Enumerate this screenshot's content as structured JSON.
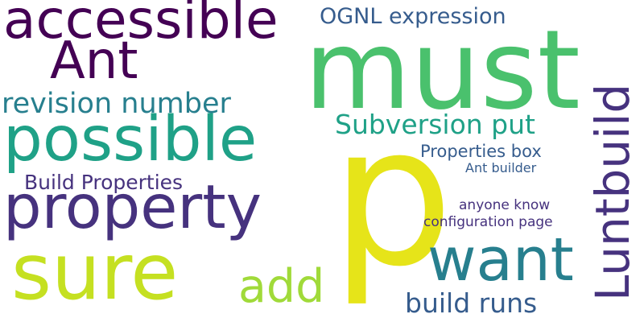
{
  "colors": {
    "background": "#ffffff",
    "dark_purple": "#440154",
    "indigo": "#46327e",
    "slate_blue": "#365c8d",
    "teal_blue": "#277f8e",
    "teal": "#1fa187",
    "green": "#4ac16d",
    "yellow_green": "#a0da39",
    "lime": "#c5e021",
    "yellow": "#e6e419"
  },
  "words": [
    {
      "key": "must",
      "text": "must",
      "color": "#4ac16d"
    },
    {
      "key": "p",
      "text": "p",
      "color": "#e6e419"
    },
    {
      "key": "accessible",
      "text": "accessible",
      "color": "#440154"
    },
    {
      "key": "Ant",
      "text": "Ant",
      "color": "#440154"
    },
    {
      "key": "possible",
      "text": "possible",
      "color": "#1fa187"
    },
    {
      "key": "property",
      "text": "property",
      "color": "#46327e"
    },
    {
      "key": "sure",
      "text": "sure",
      "color": "#c5e021"
    },
    {
      "key": "want",
      "text": "want",
      "color": "#277f8e"
    },
    {
      "key": "Luntbuild",
      "text": "Luntbuild",
      "color": "#46327e"
    },
    {
      "key": "add",
      "text": "add",
      "color": "#a0da39"
    },
    {
      "key": "revision_number",
      "text": "revision number",
      "color": "#277f8e"
    },
    {
      "key": "Subversion_put",
      "text": "Subversion put",
      "color": "#1fa187"
    },
    {
      "key": "OGNL_expression",
      "text": "OGNL expression",
      "color": "#365c8d"
    },
    {
      "key": "Build_Properties",
      "text": "Build Properties",
      "color": "#46327e"
    },
    {
      "key": "Properties_box",
      "text": "Properties box",
      "color": "#365c8d"
    },
    {
      "key": "Ant_builder",
      "text": "Ant builder",
      "color": "#365c8d"
    },
    {
      "key": "build_runs",
      "text": "build runs",
      "color": "#365c8d"
    },
    {
      "key": "anyone_know",
      "text": "anyone know",
      "color": "#46327e"
    },
    {
      "key": "configuration_page",
      "text": "configuration page",
      "color": "#46327e"
    }
  ]
}
